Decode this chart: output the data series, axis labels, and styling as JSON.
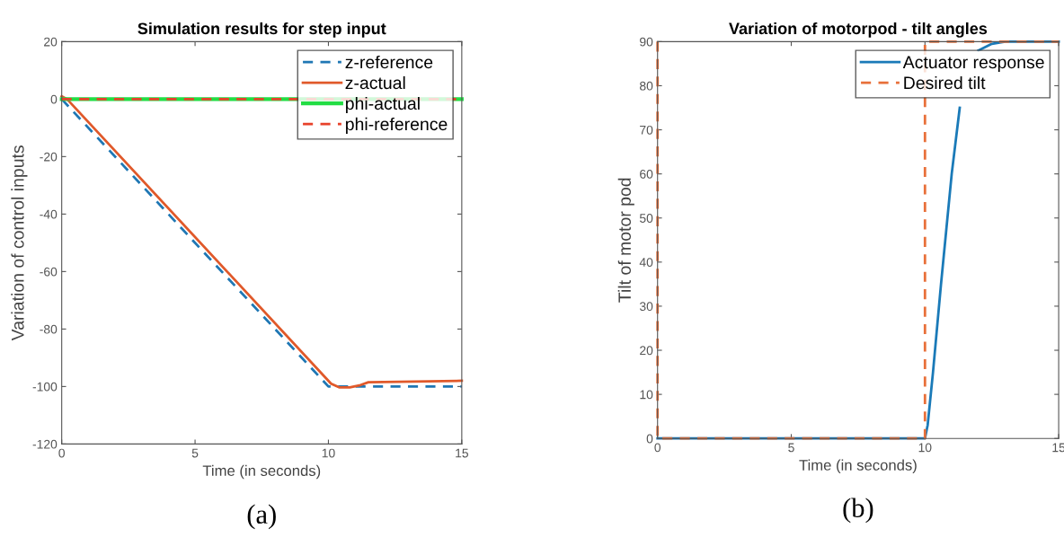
{
  "chart_data": [
    {
      "type": "line",
      "title": "Simulation results for step input",
      "xlabel": "Time (in seconds)",
      "ylabel": "Variation of control inputs",
      "annotations": [
        "(a)"
      ],
      "xlim": [
        0,
        15
      ],
      "ylim": [
        -120,
        20
      ],
      "xticks": [
        0,
        5,
        10,
        15
      ],
      "yticks": [
        -120,
        -100,
        -80,
        -60,
        -40,
        -20,
        0,
        20
      ],
      "grid": false,
      "legend": "top right",
      "series": [
        {
          "name": "z-reference",
          "color": "#1f77b4",
          "line_style": "dashed",
          "x": [
            0,
            10,
            15
          ],
          "values": [
            0,
            -100,
            -100
          ]
        },
        {
          "name": "z-actual",
          "color": "#e0592a",
          "line_style": "solid",
          "x": [
            0,
            0.2,
            10.1,
            10.4,
            10.8,
            11.2,
            11.5,
            15
          ],
          "values": [
            1,
            0,
            -99,
            -100.3,
            -100.3,
            -99.5,
            -98.5,
            -98
          ]
        },
        {
          "name": "phi-actual",
          "color": "#22dd44",
          "line_style": "solid",
          "x": [
            0,
            15
          ],
          "values": [
            0,
            0
          ]
        },
        {
          "name": "phi-reference",
          "color": "#e8412a",
          "line_style": "dashed",
          "x": [
            0,
            15
          ],
          "values": [
            0,
            0
          ]
        }
      ]
    },
    {
      "type": "line",
      "title": "Variation of motorpod - tilt angles",
      "xlabel": "Time (in seconds)",
      "ylabel": "Tilt of motor pod",
      "annotations": [
        "(b)"
      ],
      "xlim": [
        0,
        15
      ],
      "ylim": [
        0,
        90
      ],
      "xticks": [
        0,
        5,
        10,
        15
      ],
      "yticks": [
        0,
        10,
        20,
        30,
        40,
        50,
        60,
        70,
        80,
        90
      ],
      "grid": false,
      "legend": "top right",
      "series": [
        {
          "name": "Actuator response",
          "color": "#1a7ab8",
          "line_style": "solid",
          "x": [
            0,
            10,
            10.1,
            10.3,
            10.6,
            11,
            11.3,
            11.7,
            12,
            12.5,
            13,
            15
          ],
          "values": [
            0,
            0,
            3,
            15,
            35,
            60,
            75,
            null,
            88,
            89.5,
            90,
            90
          ]
        },
        {
          "name": "Desired tilt",
          "color": "#e8703a",
          "line_style": "dashed",
          "x": [
            0,
            0,
            10,
            10,
            15
          ],
          "values": [
            90,
            0,
            0,
            90,
            90
          ]
        }
      ]
    }
  ]
}
